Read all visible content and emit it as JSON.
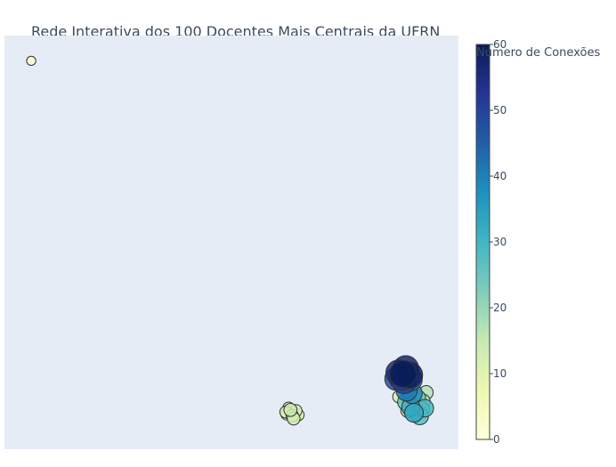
{
  "chart_data": {
    "type": "scatter",
    "title": "Rede Interativa dos 100 Docentes Mais Centrais da UFRN",
    "colorbar": {
      "title": "Número de Conexões",
      "range": [
        0,
        60
      ],
      "ticks": [
        "0",
        "10",
        "20",
        "30",
        "40",
        "50",
        "60"
      ],
      "colorscale": [
        "#ffffd9",
        "#edf8b1",
        "#c7e9b4",
        "#7fcdbb",
        "#41b6c4",
        "#1d91c0",
        "#225ea8",
        "#253494",
        "#081d58"
      ]
    },
    "xlim": [
      0,
      100
    ],
    "ylim": [
      0,
      100
    ],
    "grid": false,
    "plot_background": "#e5ecf6",
    "points": [
      {
        "x": 5.9,
        "y": 93.9,
        "value": 1
      },
      {
        "x": 62.2,
        "y": 8.5,
        "value": 10
      },
      {
        "x": 63.4,
        "y": 8.1,
        "value": 12
      },
      {
        "x": 64.2,
        "y": 9.3,
        "value": 11
      },
      {
        "x": 62.6,
        "y": 10.0,
        "value": 9
      },
      {
        "x": 63.7,
        "y": 7.4,
        "value": 13
      },
      {
        "x": 64.7,
        "y": 8.3,
        "value": 10
      },
      {
        "x": 63.0,
        "y": 9.5,
        "value": 14
      },
      {
        "x": 62.0,
        "y": 9.0,
        "value": 11
      },
      {
        "x": 86.8,
        "y": 18.5,
        "value": 55
      },
      {
        "x": 88.4,
        "y": 19.5,
        "value": 57
      },
      {
        "x": 87.4,
        "y": 17.2,
        "value": 52
      },
      {
        "x": 89.2,
        "y": 17.9,
        "value": 59
      },
      {
        "x": 88.0,
        "y": 16.3,
        "value": 50
      },
      {
        "x": 86.3,
        "y": 17.0,
        "value": 47
      },
      {
        "x": 89.6,
        "y": 16.8,
        "value": 44
      },
      {
        "x": 87.8,
        "y": 18.2,
        "value": 60
      },
      {
        "x": 88.6,
        "y": 14.2,
        "value": 41
      },
      {
        "x": 89.8,
        "y": 13.5,
        "value": 38
      },
      {
        "x": 86.9,
        "y": 12.7,
        "value": 12
      },
      {
        "x": 88.4,
        "y": 11.4,
        "value": 25
      },
      {
        "x": 89.5,
        "y": 10.2,
        "value": 31
      },
      {
        "x": 90.7,
        "y": 11.0,
        "value": 22
      },
      {
        "x": 91.8,
        "y": 9.6,
        "value": 26
      },
      {
        "x": 90.2,
        "y": 8.8,
        "value": 33
      },
      {
        "x": 91.5,
        "y": 8.0,
        "value": 28
      },
      {
        "x": 92.2,
        "y": 11.6,
        "value": 18
      },
      {
        "x": 92.9,
        "y": 13.7,
        "value": 17
      },
      {
        "x": 89.7,
        "y": 12.9,
        "value": 21
      },
      {
        "x": 91.0,
        "y": 12.4,
        "value": 24
      },
      {
        "x": 88.9,
        "y": 9.4,
        "value": 19
      },
      {
        "x": 92.6,
        "y": 9.9,
        "value": 29
      }
    ]
  }
}
